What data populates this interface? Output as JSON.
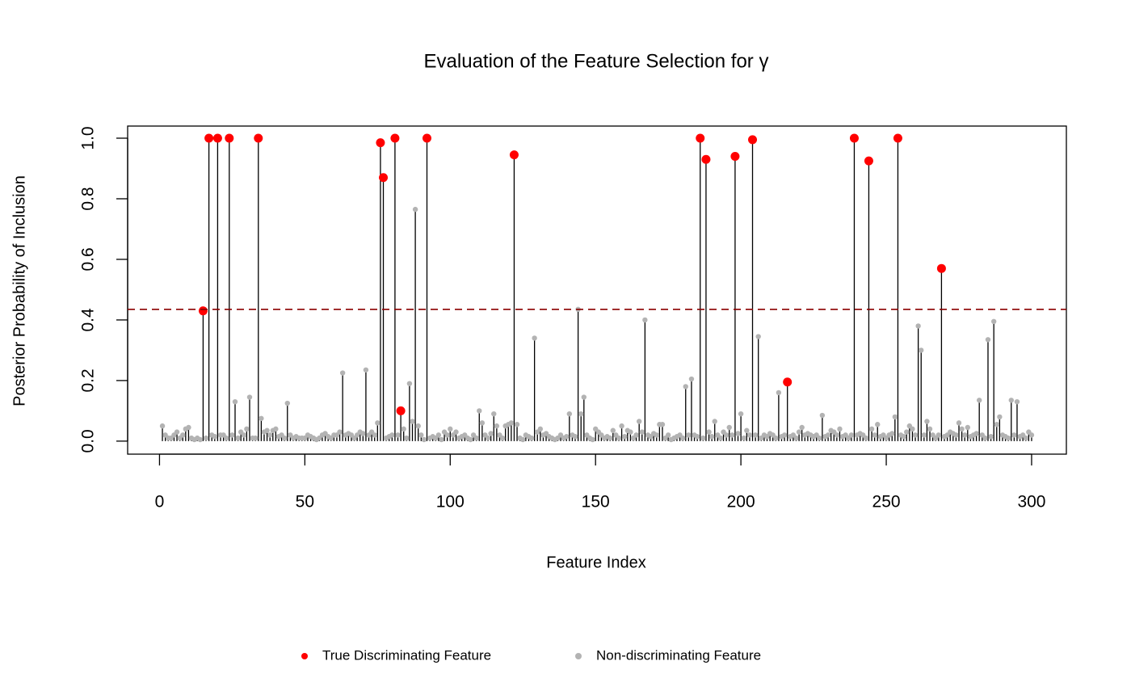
{
  "chart_data": {
    "type": "lollipop",
    "title": "Evaluation of the Feature Selection for γ",
    "x_label": "Feature Index",
    "y_label": "Posterior Probability of Inclusion",
    "xlim": [
      -10.96,
      311.96
    ],
    "ylim": [
      -0.043,
      1.04
    ],
    "xticks": [
      0,
      50,
      100,
      150,
      200,
      250,
      300
    ],
    "yticks": [
      {
        "value": 0,
        "label": "0.0"
      },
      {
        "value": 0.2,
        "label": "0.2"
      },
      {
        "value": 0.4,
        "label": "0.4"
      },
      {
        "value": 0.6,
        "label": "0.6"
      },
      {
        "value": 0.8,
        "label": "0.8"
      },
      {
        "value": 1,
        "label": "1.0"
      }
    ],
    "reference_line": {
      "value": 0.435,
      "color": "#8b0000",
      "dashed": true
    },
    "stem_color": "#000000",
    "legend": "bottom",
    "series": [
      {
        "name": "True Discriminating Feature",
        "color": "#ff0000",
        "x": [
          15,
          17,
          20,
          24,
          34,
          76,
          77,
          81,
          83,
          92,
          122,
          186,
          188,
          198,
          204,
          216,
          239,
          244,
          254,
          269
        ],
        "values": [
          0.43,
          1,
          1,
          1,
          1,
          0.985,
          0.87,
          1,
          0.1,
          1,
          0.945,
          1,
          0.93,
          0.94,
          0.995,
          0.195,
          1,
          0.925,
          1,
          0.57
        ]
      },
      {
        "name": "Non-discriminating Feature",
        "color": "#b3b3b3",
        "x": [
          1,
          2,
          3,
          4,
          5,
          6,
          7,
          8,
          9,
          10,
          11,
          12,
          13,
          14,
          16,
          18,
          19,
          21,
          22,
          23,
          25,
          26,
          27,
          28,
          29,
          30,
          31,
          32,
          33,
          35,
          36,
          37,
          38,
          39,
          40,
          41,
          42,
          43,
          44,
          45,
          46,
          47,
          48,
          49,
          50,
          51,
          52,
          53,
          54,
          55,
          56,
          57,
          58,
          59,
          60,
          61,
          62,
          63,
          64,
          65,
          66,
          67,
          68,
          69,
          70,
          71,
          72,
          73,
          74,
          75,
          78,
          79,
          80,
          82,
          84,
          85,
          86,
          87,
          88,
          89,
          90,
          91,
          93,
          94,
          95,
          96,
          97,
          98,
          99,
          100,
          101,
          102,
          103,
          104,
          105,
          106,
          107,
          108,
          109,
          110,
          111,
          112,
          113,
          114,
          115,
          116,
          117,
          118,
          119,
          120,
          121,
          123,
          124,
          125,
          126,
          127,
          128,
          129,
          130,
          131,
          132,
          133,
          134,
          135,
          136,
          137,
          138,
          139,
          140,
          141,
          142,
          143,
          144,
          145,
          146,
          147,
          148,
          149,
          150,
          151,
          152,
          153,
          154,
          155,
          156,
          157,
          158,
          159,
          160,
          161,
          162,
          163,
          164,
          165,
          166,
          167,
          168,
          169,
          170,
          171,
          172,
          173,
          174,
          175,
          176,
          177,
          178,
          179,
          180,
          181,
          182,
          183,
          184,
          185,
          187,
          189,
          190,
          191,
          192,
          193,
          194,
          195,
          196,
          197,
          199,
          200,
          201,
          202,
          203,
          205,
          206,
          207,
          208,
          209,
          210,
          211,
          212,
          213,
          214,
          215,
          217,
          218,
          219,
          220,
          221,
          222,
          223,
          224,
          225,
          226,
          227,
          228,
          229,
          230,
          231,
          232,
          233,
          234,
          235,
          236,
          237,
          238,
          240,
          241,
          242,
          243,
          245,
          246,
          247,
          248,
          249,
          250,
          251,
          252,
          253,
          255,
          256,
          257,
          258,
          259,
          260,
          261,
          262,
          263,
          264,
          265,
          266,
          267,
          268,
          270,
          271,
          272,
          273,
          274,
          275,
          276,
          277,
          278,
          279,
          280,
          281,
          282,
          283,
          284,
          285,
          286,
          287,
          288,
          289,
          290,
          291,
          292,
          293,
          294,
          295,
          296,
          297,
          298,
          299,
          300
        ],
        "values": [
          0.05,
          0.02,
          0.01,
          0.01,
          0.02,
          0.03,
          0.01,
          0.02,
          0.04,
          0.045,
          0.01,
          0.005,
          0.01,
          0.005,
          0.01,
          0.02,
          0.015,
          0.02,
          0.02,
          0.01,
          0.02,
          0.13,
          0.01,
          0.03,
          0.02,
          0.04,
          0.145,
          0.01,
          0.01,
          0.075,
          0.03,
          0.035,
          0.02,
          0.035,
          0.04,
          0.015,
          0.02,
          0.01,
          0.125,
          0.02,
          0.01,
          0.015,
          0.01,
          0.01,
          0.01,
          0.02,
          0.015,
          0.01,
          0.005,
          0.01,
          0.02,
          0.025,
          0.015,
          0.01,
          0.02,
          0.02,
          0.03,
          0.225,
          0.02,
          0.025,
          0.02,
          0.01,
          0.02,
          0.03,
          0.025,
          0.235,
          0.02,
          0.03,
          0.02,
          0.06,
          0.01,
          0.015,
          0.02,
          0.02,
          0.04,
          0.01,
          0.19,
          0.065,
          0.765,
          0.05,
          0.02,
          0.005,
          0.01,
          0.015,
          0.01,
          0.02,
          0.005,
          0.03,
          0.02,
          0.04,
          0.02,
          0.03,
          0.01,
          0.015,
          0.02,
          0.01,
          0.005,
          0.02,
          0.01,
          0.1,
          0.06,
          0.02,
          0.01,
          0.025,
          0.09,
          0.05,
          0.02,
          0.01,
          0.05,
          0.055,
          0.06,
          0.055,
          0.01,
          0.005,
          0.02,
          0.015,
          0.01,
          0.34,
          0.03,
          0.04,
          0.02,
          0.025,
          0.015,
          0.01,
          0.005,
          0.01,
          0.02,
          0.01,
          0.015,
          0.09,
          0.02,
          0.015,
          0.435,
          0.09,
          0.145,
          0.02,
          0.01,
          0.005,
          0.04,
          0.03,
          0.02,
          0.01,
          0.015,
          0.01,
          0.035,
          0.02,
          0.01,
          0.05,
          0.015,
          0.035,
          0.03,
          0.01,
          0.02,
          0.065,
          0.03,
          0.4,
          0.02,
          0.015,
          0.025,
          0.02,
          0.055,
          0.055,
          0.01,
          0.02,
          0.005,
          0.01,
          0.015,
          0.02,
          0.01,
          0.18,
          0.02,
          0.205,
          0.02,
          0.015,
          0.01,
          0.03,
          0.015,
          0.065,
          0.02,
          0.01,
          0.03,
          0.02,
          0.045,
          0.02,
          0.025,
          0.09,
          0.01,
          0.035,
          0.02,
          0.02,
          0.345,
          0.01,
          0.02,
          0.015,
          0.025,
          0.02,
          0.01,
          0.16,
          0.015,
          0.02,
          0.015,
          0.02,
          0.01,
          0.03,
          0.045,
          0.02,
          0.025,
          0.02,
          0.015,
          0.02,
          0.01,
          0.085,
          0.015,
          0.02,
          0.035,
          0.03,
          0.02,
          0.04,
          0.015,
          0.02,
          0.01,
          0.02,
          0.02,
          0.025,
          0.02,
          0.01,
          0.04,
          0.02,
          0.055,
          0.015,
          0.02,
          0.01,
          0.02,
          0.025,
          0.08,
          0.02,
          0.015,
          0.03,
          0.05,
          0.04,
          0.02,
          0.38,
          0.3,
          0.02,
          0.065,
          0.04,
          0.02,
          0.01,
          0.02,
          0.015,
          0.02,
          0.03,
          0.025,
          0.02,
          0.06,
          0.04,
          0.02,
          0.045,
          0.015,
          0.02,
          0.025,
          0.135,
          0.02,
          0.01,
          0.335,
          0.015,
          0.395,
          0.055,
          0.08,
          0.02,
          0.015,
          0.01,
          0.135,
          0.02,
          0.13,
          0.015,
          0.02,
          0.01,
          0.03,
          0.02
        ]
      }
    ]
  }
}
